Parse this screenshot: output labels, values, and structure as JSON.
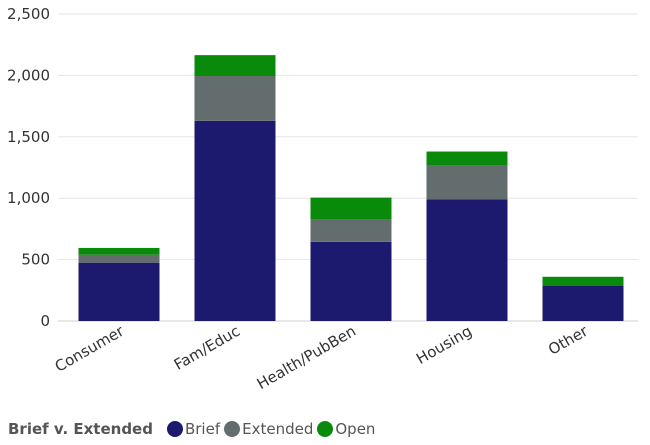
{
  "chart_data": {
    "type": "bar",
    "stacked": true,
    "title": "",
    "xlabel": "",
    "ylabel": "",
    "ylim": [
      0,
      2500
    ],
    "yticks": [
      0,
      500,
      1000,
      1500,
      2000,
      2500
    ],
    "ytick_labels": [
      "0",
      "500",
      "1,000",
      "1,500",
      "2,000",
      "2,500"
    ],
    "grid": true,
    "categories": [
      "Consumer",
      "Fam/Educ",
      "Health/PubBen",
      "Housing",
      "Other"
    ],
    "series": [
      {
        "name": "Brief",
        "values": [
          475,
          1630,
          645,
          990,
          285
        ],
        "color": "#1c1a6e"
      },
      {
        "name": "Extended",
        "values": [
          65,
          365,
          180,
          275,
          0
        ],
        "color": "#636d6d"
      },
      {
        "name": "Open",
        "values": [
          55,
          170,
          180,
          115,
          75
        ],
        "color": "#0a8a0a"
      }
    ],
    "legend": {
      "title": "Brief v. Extended",
      "position": "bottom-left"
    }
  }
}
